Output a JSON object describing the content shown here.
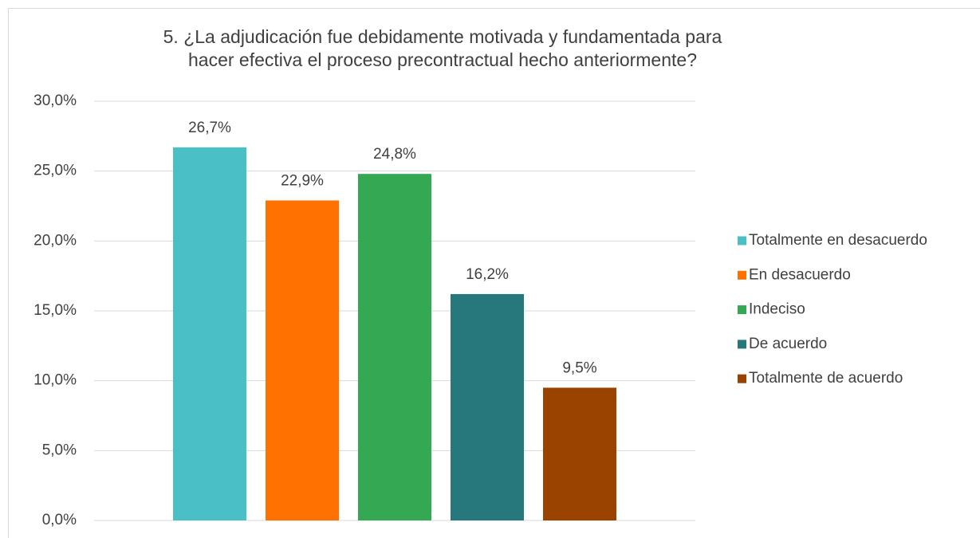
{
  "chart_data": {
    "type": "bar",
    "title": "5. ¿La adjudicación fue debidamente motivada y fundamentada para hacer efectiva el proceso precontractual hecho anteriormente?",
    "series": [
      {
        "name": "Totalmente en desacuerdo",
        "color": "#4bbfc6",
        "values": [
          26.7
        ],
        "value_labels": [
          "26,7%"
        ]
      },
      {
        "name": "En desacuerdo",
        "color": "#ff7100",
        "values": [
          22.9
        ],
        "value_labels": [
          "22,9%"
        ]
      },
      {
        "name": "Indeciso",
        "color": "#35a853",
        "values": [
          24.8
        ],
        "value_labels": [
          "24,8%"
        ]
      },
      {
        "name": "De acuerdo",
        "color": "#26787c",
        "values": [
          16.2
        ],
        "value_labels": [
          "16,2%"
        ]
      },
      {
        "name": "Totalmente de acuerdo",
        "color": "#9a4200",
        "values": [
          9.5
        ],
        "value_labels": [
          "9,5%"
        ]
      }
    ],
    "ylim": [
      0,
      30
    ],
    "yticks": [
      {
        "value": 0,
        "label": "0,0%"
      },
      {
        "value": 5,
        "label": "5,0%"
      },
      {
        "value": 10,
        "label": "10,0%"
      },
      {
        "value": 15,
        "label": "15,0%"
      },
      {
        "value": 20,
        "label": "20,0%"
      },
      {
        "value": 25,
        "label": "25,0%"
      },
      {
        "value": 30,
        "label": "30,0%"
      }
    ],
    "grid": true,
    "legend": "right"
  }
}
